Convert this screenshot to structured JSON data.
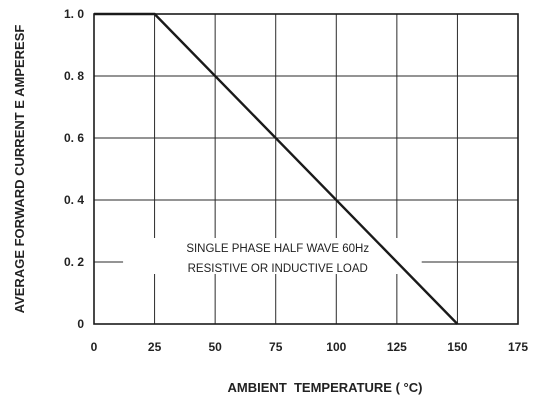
{
  "chart_data": {
    "type": "line",
    "title": "",
    "xlabel": "AMBIENT  TEMPERATURE ( °C)",
    "ylabel": "AVERAGE FORWARD CURRENT  E AMPERESF",
    "xlim": [
      0,
      175
    ],
    "ylim": [
      0,
      1.0
    ],
    "x_ticks": [
      0,
      25,
      50,
      75,
      100,
      125,
      150,
      175
    ],
    "x_tick_labels": [
      "0",
      "25",
      "50",
      "75",
      "100",
      "125",
      "150",
      "175"
    ],
    "y_ticks": [
      0,
      0.2,
      0.4,
      0.6,
      0.8,
      1.0
    ],
    "y_tick_labels": [
      "0",
      "0. 2",
      "0. 4",
      "0. 6",
      "0. 8",
      "1. 0"
    ],
    "grid": true,
    "legend": "none",
    "series": [
      {
        "x": [
          0,
          25,
          150
        ],
        "y": [
          1.0,
          1.0,
          0
        ],
        "color": "#1a1a1a"
      }
    ],
    "annotation": {
      "lines": [
        "SINGLE PHASE HALF WAVE 60Hz",
        "RESISTIVE OR INDUCTIVE LOAD"
      ],
      "x": 75,
      "y": 0.2
    }
  }
}
